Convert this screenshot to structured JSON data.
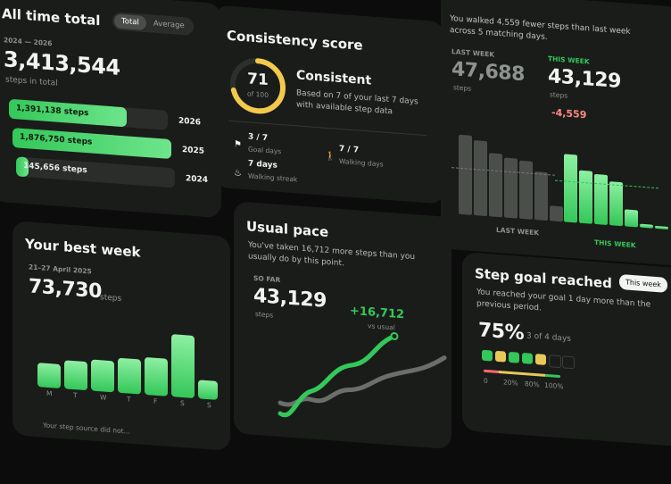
{
  "all_time": {
    "title": "All time total",
    "toggle": [
      "Total",
      "Average"
    ],
    "range": "2024 — 2026",
    "total": "3,413,544",
    "total_caption": "steps in total",
    "years": [
      {
        "year": "2026",
        "label": "1,391,138 steps",
        "value": 1391138
      },
      {
        "year": "2025",
        "label": "1,876,750 steps",
        "value": 1876750
      },
      {
        "year": "2024",
        "label": "145,656 steps",
        "value": 145656
      }
    ]
  },
  "consistency": {
    "title": "Consistency score",
    "score": "71",
    "score_of": "of 100",
    "score_fraction": 0.71,
    "verdict": "Consistent",
    "description": "Based on 7 of your last 7 days with available step data",
    "stats": [
      {
        "icon": "flag-icon",
        "value": "3 / 7",
        "label": "Goal days"
      },
      {
        "icon": "walking-icon",
        "value": "7 / 7",
        "label": "Walking days"
      },
      {
        "icon": "flame-icon",
        "value": "7 days",
        "label": "Walking streak"
      }
    ]
  },
  "best_week": {
    "title": "Your best week",
    "range": "21–27 April 2025",
    "value": "73,730",
    "unit": "steps",
    "days": [
      "M",
      "T",
      "W",
      "T",
      "F",
      "S",
      "S"
    ],
    "day_values": [
      0.38,
      0.45,
      0.5,
      0.56,
      0.6,
      1.0,
      0.3
    ],
    "footer": "Your step source did not..."
  },
  "usual_pace": {
    "title": "Usual pace",
    "description": "You've taken 16,712 more steps than you usually do by this point.",
    "so_far_label": "SO FAR",
    "value": "43,129",
    "unit": "steps",
    "delta": "+16,712",
    "delta_caption": "vs usual"
  },
  "week_compare": {
    "summary": "You walked 4,559 fewer steps than last week across 5 matching days.",
    "last_week_label": "LAST WEEK",
    "last_week_value": "47,688",
    "this_week_label": "THIS WEEK",
    "this_week_value": "43,129",
    "unit": "steps",
    "diff": "-4,559",
    "last_week_bars": [
      0.82,
      0.78,
      0.66,
      0.62,
      0.6,
      0.5,
      0.16
    ],
    "this_week_bars": [
      0.7,
      0.55,
      0.52,
      0.45,
      0.18,
      0.04,
      0.03
    ],
    "legend_last": "LAST WEEK",
    "legend_this": "THIS WEEK",
    "colors": {
      "last": "#4a4f4a",
      "this": "#34c759"
    }
  },
  "goal": {
    "title": "Step goal reached",
    "badge": "This week",
    "description": "You reached your goal 1 day more than the previous period.",
    "percent": "75%",
    "count": "3 of 4 days",
    "day_colors": [
      "#34c759",
      "#e8c85a",
      "#34c759",
      "#34c759",
      "#e8c85a",
      "#1a1c1a",
      "#1a1c1a"
    ],
    "scale": [
      "0",
      "20%",
      "80%",
      "100%"
    ]
  }
}
